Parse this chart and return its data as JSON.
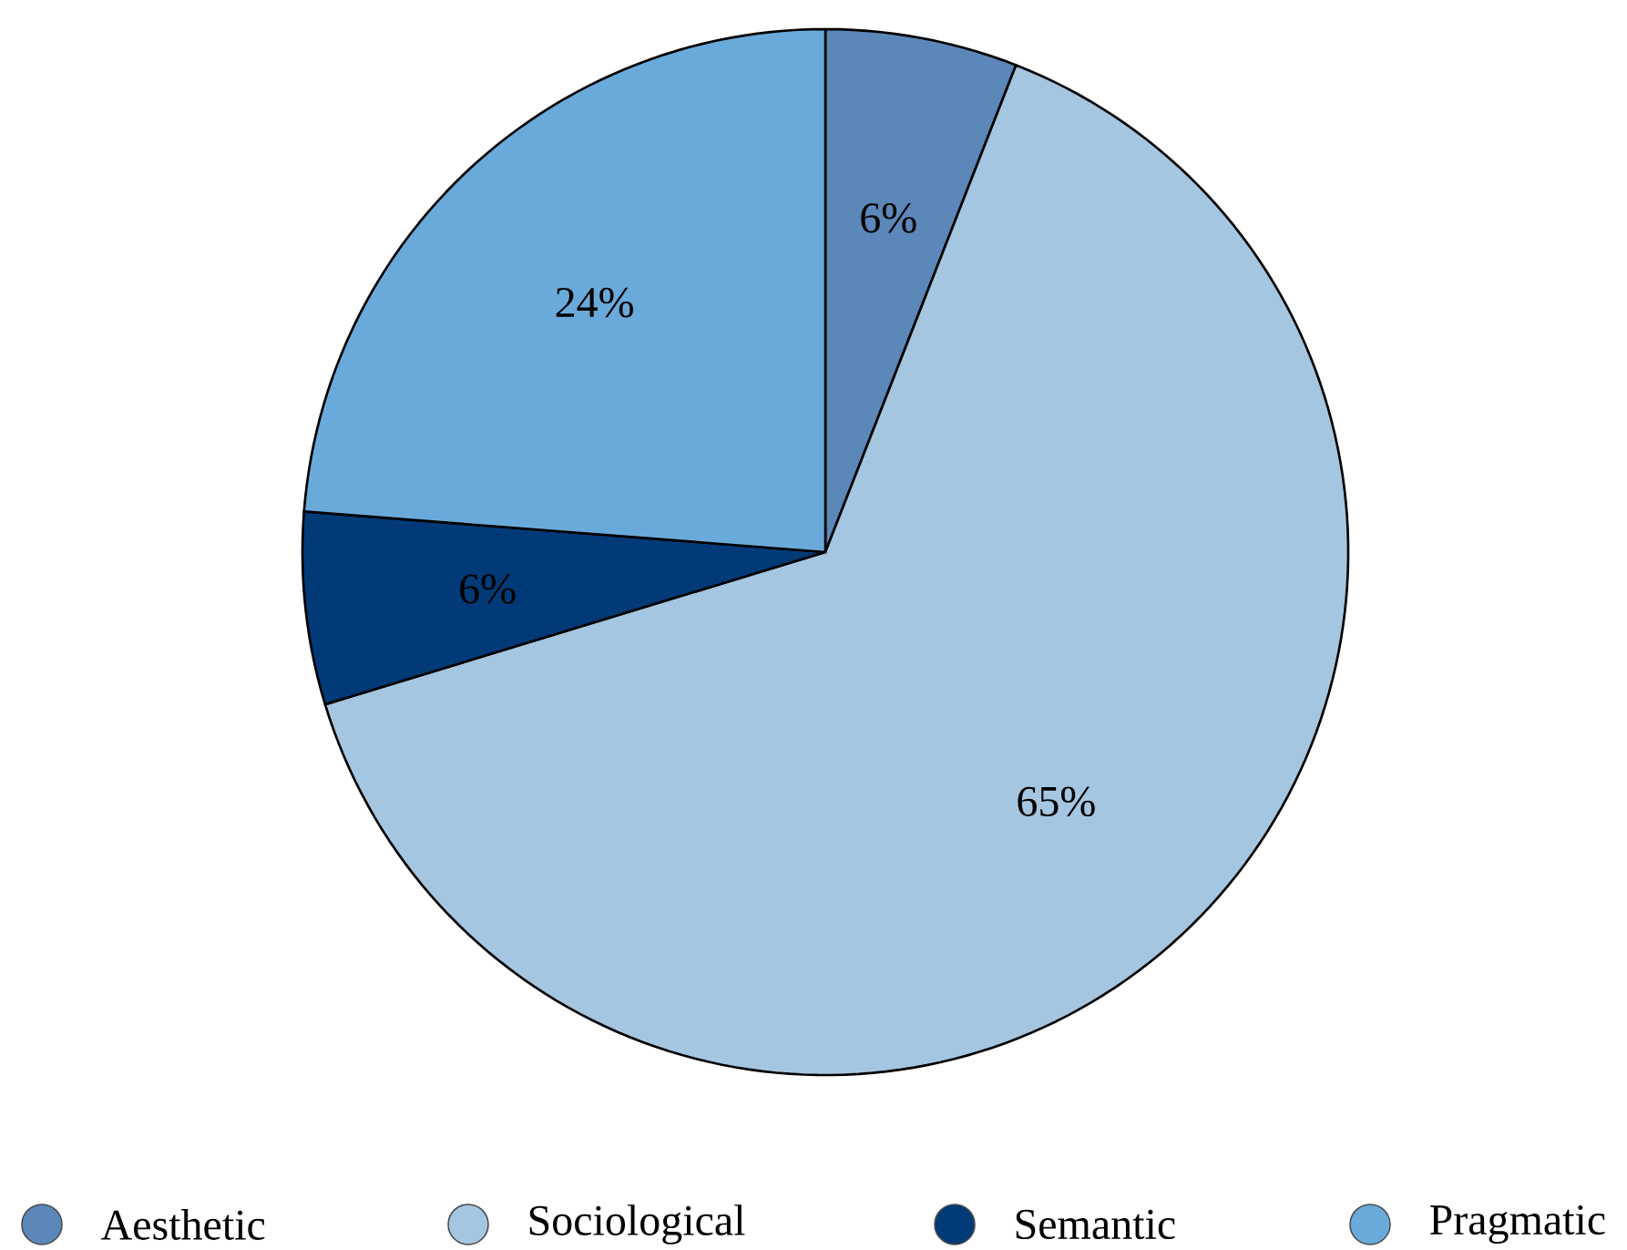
{
  "chart_data": {
    "type": "pie",
    "categories": [
      "Aesthetic",
      "Sociological",
      "Semantic",
      "Pragmatic"
    ],
    "values": [
      6,
      65,
      6,
      24
    ],
    "colors": [
      "#5b87b9",
      "#a5c6e1",
      "#023a78",
      "#6aaadb"
    ],
    "value_labels": [
      "6%",
      "65%",
      "6%",
      "24%"
    ],
    "legend": "bottom"
  }
}
